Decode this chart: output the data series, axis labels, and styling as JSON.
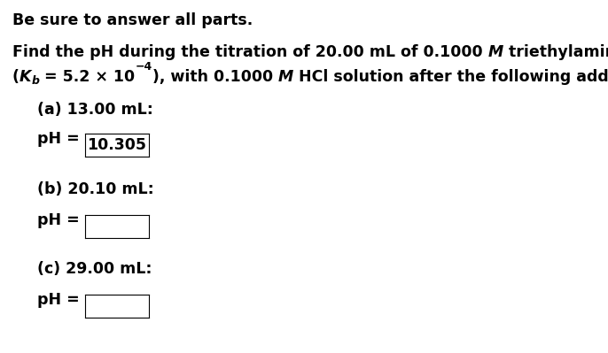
{
  "header": "Be sure to answer all parts.",
  "part_a_label": "(a) 13.00 mL:",
  "part_a_ph_label": "pH = ",
  "part_a_ph_value": "10.305",
  "part_b_label": "(b) 20.10 mL:",
  "part_b_ph_label": "pH = ",
  "part_c_label": "(c) 29.00 mL:",
  "part_c_ph_label": "pH = ",
  "bg_color": "#ffffff",
  "text_color": "#000000",
  "box_color": "#ffffff",
  "box_edge_color": "#000000",
  "font_size": 12.5,
  "font_size_sub": 9
}
